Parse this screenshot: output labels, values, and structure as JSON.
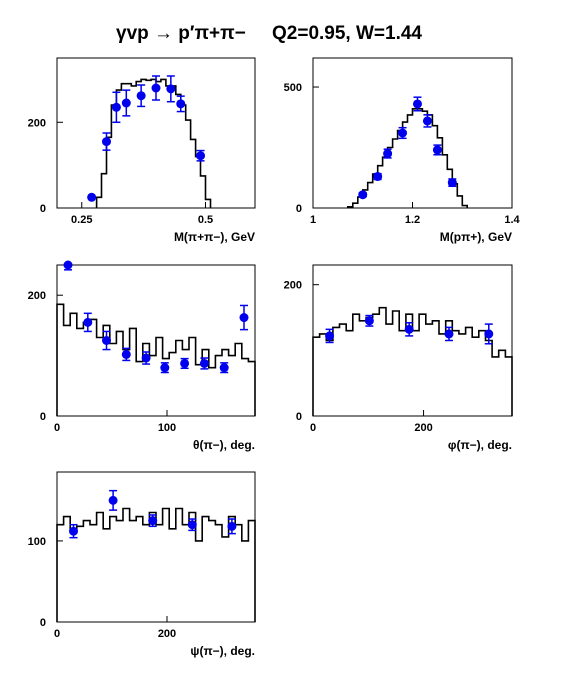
{
  "title": {
    "reaction": "γvp → p′π+π−",
    "kinematics": "Q2=0.95, W=1.44"
  },
  "colors": {
    "data": "#0000ee",
    "histogram": "#000000",
    "frame": "#000000"
  },
  "chart_data": [
    {
      "type": "line",
      "xlabel": "M(π+π−), GeV",
      "xlim": [
        0.2,
        0.6
      ],
      "ylim": [
        0,
        350
      ],
      "xticks": [
        {
          "v": 0.25,
          "label": "0.25"
        },
        {
          "v": 0.5,
          "label": "0.5"
        }
      ],
      "yticks": [
        {
          "v": 0,
          "label": "0"
        },
        {
          "v": 200,
          "label": "200"
        }
      ],
      "histogram": {
        "edges": [
          0.28,
          0.29,
          0.3,
          0.31,
          0.32,
          0.33,
          0.34,
          0.35,
          0.36,
          0.37,
          0.38,
          0.39,
          0.4,
          0.41,
          0.42,
          0.43,
          0.44,
          0.45,
          0.46,
          0.47,
          0.48,
          0.49,
          0.5,
          0.51
        ],
        "values": [
          25,
          80,
          165,
          240,
          275,
          290,
          290,
          285,
          295,
          300,
          298,
          300,
          295,
          300,
          285,
          285,
          265,
          240,
          205,
          160,
          120,
          75,
          20
        ]
      },
      "points": [
        {
          "x": 0.27,
          "y": 25,
          "err": 0
        },
        {
          "x": 0.3,
          "y": 155,
          "err": 20
        },
        {
          "x": 0.32,
          "y": 235,
          "err": 35
        },
        {
          "x": 0.34,
          "y": 245,
          "err": 30
        },
        {
          "x": 0.37,
          "y": 262,
          "err": 25
        },
        {
          "x": 0.4,
          "y": 280,
          "err": 28
        },
        {
          "x": 0.43,
          "y": 278,
          "err": 30
        },
        {
          "x": 0.45,
          "y": 243,
          "err": 18
        },
        {
          "x": 0.49,
          "y": 122,
          "err": 12
        }
      ]
    },
    {
      "type": "line",
      "xlabel": "M(pπ+), GeV",
      "xlim": [
        1.0,
        1.4
      ],
      "ylim": [
        0,
        620
      ],
      "xticks": [
        {
          "v": 1.0,
          "label": "1"
        },
        {
          "v": 1.2,
          "label": "1.2"
        },
        {
          "v": 1.4,
          "label": "1.4"
        }
      ],
      "yticks": [
        {
          "v": 0,
          "label": "0"
        },
        {
          "v": 500,
          "label": "500"
        }
      ],
      "histogram": {
        "edges": [
          1.07,
          1.08,
          1.09,
          1.1,
          1.11,
          1.12,
          1.13,
          1.14,
          1.15,
          1.16,
          1.17,
          1.18,
          1.19,
          1.2,
          1.21,
          1.22,
          1.23,
          1.24,
          1.25,
          1.26,
          1.27,
          1.28,
          1.29,
          1.3,
          1.31
        ],
        "values": [
          5,
          20,
          45,
          75,
          105,
          140,
          175,
          210,
          250,
          285,
          320,
          355,
          385,
          410,
          410,
          400,
          385,
          340,
          290,
          220,
          160,
          100,
          50,
          10
        ]
      },
      "points": [
        {
          "x": 1.1,
          "y": 55,
          "err": 8
        },
        {
          "x": 1.13,
          "y": 130,
          "err": 12
        },
        {
          "x": 1.15,
          "y": 225,
          "err": 18
        },
        {
          "x": 1.18,
          "y": 310,
          "err": 22
        },
        {
          "x": 1.21,
          "y": 430,
          "err": 28
        },
        {
          "x": 1.23,
          "y": 360,
          "err": 25
        },
        {
          "x": 1.25,
          "y": 240,
          "err": 20
        },
        {
          "x": 1.28,
          "y": 105,
          "err": 15
        }
      ]
    },
    {
      "type": "line",
      "xlabel": "θ(π−), deg.",
      "xlim": [
        0,
        180
      ],
      "ylim": [
        0,
        250
      ],
      "xticks": [
        {
          "v": 0,
          "label": "0"
        },
        {
          "v": 100,
          "label": "100"
        }
      ],
      "yticks": [
        {
          "v": 0,
          "label": "0"
        },
        {
          "v": 200,
          "label": "200"
        }
      ],
      "histogram": {
        "edges": [
          0,
          6,
          12,
          18,
          24,
          30,
          36,
          42,
          48,
          54,
          60,
          66,
          72,
          78,
          84,
          90,
          96,
          102,
          108,
          114,
          120,
          126,
          132,
          138,
          144,
          150,
          156,
          162,
          168,
          174,
          180
        ],
        "values": [
          185,
          150,
          170,
          145,
          155,
          160,
          130,
          150,
          120,
          140,
          110,
          145,
          90,
          120,
          100,
          130,
          95,
          105,
          125,
          110,
          130,
          85,
          110,
          80,
          100,
          110,
          100,
          120,
          95,
          90
        ]
      },
      "points": [
        {
          "x": 10,
          "y": 250,
          "err": 8
        },
        {
          "x": 28,
          "y": 155,
          "err": 15
        },
        {
          "x": 45,
          "y": 125,
          "err": 15
        },
        {
          "x": 63,
          "y": 102,
          "err": 10
        },
        {
          "x": 81,
          "y": 96,
          "err": 10
        },
        {
          "x": 98,
          "y": 80,
          "err": 8
        },
        {
          "x": 116,
          "y": 87,
          "err": 8
        },
        {
          "x": 134,
          "y": 87,
          "err": 9
        },
        {
          "x": 152,
          "y": 80,
          "err": 8
        },
        {
          "x": 170,
          "y": 163,
          "err": 20
        }
      ]
    },
    {
      "type": "line",
      "xlabel": "φ(π−), deg.",
      "xlim": [
        0,
        360
      ],
      "ylim": [
        0,
        230
      ],
      "xticks": [
        {
          "v": 0,
          "label": "0"
        },
        {
          "v": 200,
          "label": "200"
        }
      ],
      "yticks": [
        {
          "v": 0,
          "label": "0"
        },
        {
          "v": 200,
          "label": "200"
        }
      ],
      "histogram": {
        "edges": [
          0,
          12,
          24,
          36,
          48,
          60,
          72,
          84,
          96,
          108,
          120,
          132,
          144,
          156,
          168,
          180,
          192,
          204,
          216,
          228,
          240,
          252,
          264,
          276,
          288,
          300,
          312,
          324,
          336,
          348,
          360
        ],
        "values": [
          120,
          125,
          115,
          135,
          140,
          130,
          155,
          145,
          150,
          155,
          165,
          140,
          160,
          130,
          155,
          130,
          155,
          140,
          145,
          125,
          145,
          130,
          125,
          135,
          120,
          130,
          115,
          90,
          100,
          90
        ]
      },
      "points": [
        {
          "x": 30,
          "y": 122,
          "err": 10
        },
        {
          "x": 102,
          "y": 145,
          "err": 8
        },
        {
          "x": 174,
          "y": 132,
          "err": 10
        },
        {
          "x": 246,
          "y": 125,
          "err": 10
        },
        {
          "x": 318,
          "y": 125,
          "err": 15
        }
      ]
    },
    {
      "type": "line",
      "xlabel": "ψ(π−), deg.",
      "xlim": [
        0,
        360
      ],
      "ylim": [
        0,
        185
      ],
      "xticks": [
        {
          "v": 0,
          "label": "0"
        },
        {
          "v": 200,
          "label": "200"
        }
      ],
      "yticks": [
        {
          "v": 0,
          "label": "0"
        },
        {
          "v": 100,
          "label": "100"
        }
      ],
      "histogram": {
        "edges": [
          0,
          12,
          24,
          36,
          48,
          60,
          72,
          84,
          96,
          108,
          120,
          132,
          144,
          156,
          168,
          180,
          192,
          204,
          216,
          228,
          240,
          252,
          264,
          276,
          288,
          300,
          312,
          324,
          336,
          348,
          360
        ],
        "values": [
          120,
          130,
          115,
          118,
          125,
          120,
          135,
          115,
          130,
          125,
          140,
          125,
          130,
          120,
          135,
          120,
          140,
          115,
          140,
          120,
          135,
          100,
          130,
          125,
          120,
          105,
          130,
          120,
          100,
          125
        ]
      },
      "points": [
        {
          "x": 30,
          "y": 112,
          "err": 8
        },
        {
          "x": 102,
          "y": 150,
          "err": 12
        },
        {
          "x": 174,
          "y": 125,
          "err": 7
        },
        {
          "x": 246,
          "y": 120,
          "err": 7
        },
        {
          "x": 318,
          "y": 118,
          "err": 9
        }
      ]
    }
  ]
}
